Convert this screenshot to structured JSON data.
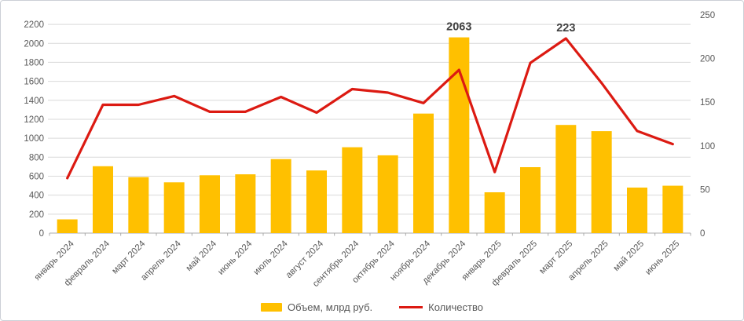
{
  "chart_data": {
    "type": "combo",
    "title": "",
    "categories": [
      "январь 2024",
      "февраль 2024",
      "март 2024",
      "апрель 2024",
      "май 2024",
      "июнь 2024",
      "июль 2024",
      "август 2024",
      "сентябрь 2024",
      "октябрь 2024",
      "ноябрь 2024",
      "декабрь 2024",
      "январь 2025",
      "февраль 2025",
      "март 2025",
      "апрель 2025",
      "май 2025",
      "июнь 2025"
    ],
    "series": [
      {
        "name": "Объем, млрд руб.",
        "type": "bar",
        "axis": "left",
        "color": "#FFC000",
        "values": [
          145,
          705,
          590,
          535,
          610,
          620,
          780,
          660,
          905,
          820,
          1260,
          2063,
          430,
          695,
          1140,
          1075,
          480,
          500
        ]
      },
      {
        "name": "Количество",
        "type": "line",
        "axis": "right",
        "color": "#DC1A12",
        "values": [
          63,
          147,
          147,
          157,
          139,
          139,
          156,
          138,
          165,
          161,
          149,
          187,
          70,
          195,
          223,
          172,
          117,
          102
        ]
      }
    ],
    "left_axis": {
      "min": 0,
      "max": 2300,
      "tick_labels": [
        "0",
        "200",
        "400",
        "600",
        "800",
        "1000",
        "1200",
        "1400",
        "1600",
        "1800",
        "2000",
        "2200"
      ],
      "tick_values": [
        0,
        200,
        400,
        600,
        800,
        1000,
        1200,
        1400,
        1600,
        1800,
        2000,
        2200
      ]
    },
    "right_axis": {
      "min": 0,
      "max": 250,
      "tick_labels": [
        "0",
        "50",
        "100",
        "150",
        "200",
        "250"
      ],
      "tick_values": [
        0,
        50,
        100,
        150,
        200,
        250
      ]
    },
    "annotations": [
      {
        "text": "2063",
        "series_index": 0,
        "category_index": 11
      },
      {
        "text": "223",
        "series_index": 1,
        "category_index": 14
      }
    ],
    "grid": true,
    "legend_position": "bottom",
    "colors": {
      "grid_line": "#D9D9D9",
      "axis_line": "#ABABAB",
      "tick_text": "#595959",
      "annotation_text": "#404040"
    }
  }
}
